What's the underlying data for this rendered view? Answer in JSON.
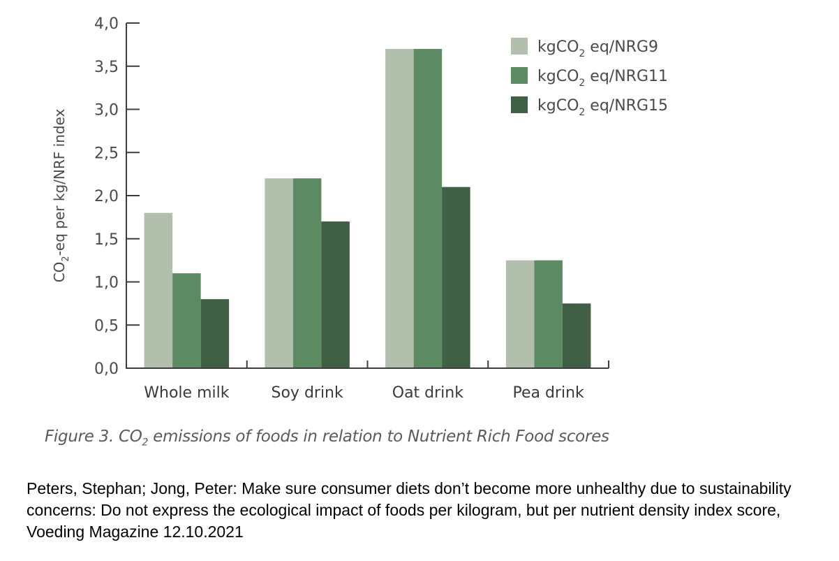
{
  "chart_data": {
    "type": "bar",
    "title": "",
    "xlabel": "",
    "ylabel": "CO2-eq per kg/NRF index",
    "ylabel_main": "CO",
    "ylabel_sub": "2",
    "ylabel_rest": "-eq per kg/NRF index",
    "ylim": [
      0,
      4.0
    ],
    "yticks": [
      "0,0",
      "0,5",
      "1,0",
      "1,5",
      "2,0",
      "2,5",
      "3,0",
      "3,5",
      "4,0"
    ],
    "ytick_values": [
      0,
      0.5,
      1.0,
      1.5,
      2.0,
      2.5,
      3.0,
      3.5,
      4.0
    ],
    "categories": [
      "Whole milk",
      "Soy drink",
      "Oat drink",
      "Pea drink"
    ],
    "legend_position": "top-right",
    "grid": false,
    "series": [
      {
        "name": "kgCO2 eq/NRG9",
        "label_pre": "kgCO",
        "label_sub": "2",
        "label_post": " eq/NRG9",
        "color": "#b3bfad",
        "values": [
          1.8,
          2.2,
          3.7,
          1.25
        ]
      },
      {
        "name": "kgCO2 eq/NRG11",
        "label_pre": "kgCO",
        "label_sub": "2",
        "label_post": " eq/NRG11",
        "color": "#5c8a62",
        "values": [
          1.1,
          2.2,
          3.7,
          1.25
        ]
      },
      {
        "name": "kgCO2 eq/NRG15",
        "label_pre": "kgCO",
        "label_sub": "2",
        "label_post": " eq/NRG15",
        "color": "#405f45",
        "values": [
          0.8,
          1.7,
          2.1,
          0.75
        ]
      }
    ]
  },
  "caption": {
    "pre": "Figure 3. CO",
    "sub": "2",
    "post": " emissions of foods in relation to Nutrient Rich Food scores"
  },
  "citation": "Peters, Stephan; Jong, Peter: Make sure consumer diets don’t become more unhealthy due to sustainability concerns: Do not express the ecological impact of foods per kilogram, but per nutrient density index score, Voeding Magazine 12.10.2021"
}
